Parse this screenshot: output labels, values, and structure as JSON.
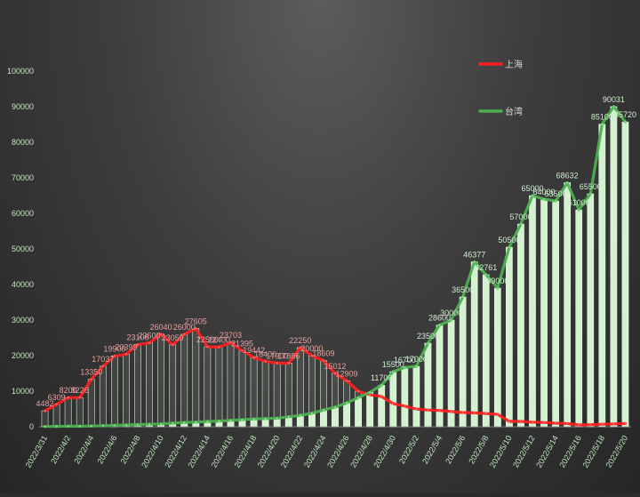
{
  "chart_data": {
    "type": "bar+line",
    "title": "",
    "xlabel": "",
    "ylabel": "",
    "ylim": [
      0,
      100000
    ],
    "yticks": [
      "0",
      "10000",
      "20000",
      "30000",
      "40000",
      "50000",
      "60000",
      "70000",
      "80000",
      "90000",
      "100000"
    ],
    "legend_position": "top-right",
    "grid": false,
    "categories": [
      "2022/3/31",
      "2022/4/1",
      "2022/4/2",
      "2022/4/3",
      "2022/4/4",
      "2022/4/5",
      "2022/4/6",
      "2022/4/7",
      "2022/4/8",
      "2022/4/9",
      "2022/4/10",
      "2022/4/11",
      "2022/4/12",
      "2022/4/13",
      "2022/4/14",
      "2022/4/15",
      "2022/4/16",
      "2022/4/17",
      "2022/4/18",
      "2022/4/19",
      "2022/4/20",
      "2022/4/21",
      "2022/4/22",
      "2022/4/23",
      "2022/4/24",
      "2022/4/25",
      "2022/4/26",
      "2022/4/27",
      "2022/4/28",
      "2022/4/29",
      "2022/4/30",
      "2022/5/1",
      "2022/5/2",
      "2022/5/3",
      "2022/5/4",
      "2022/5/5",
      "2022/5/6",
      "2022/5/7",
      "2022/5/8",
      "2022/5/9",
      "2022/5/10",
      "2022/5/11",
      "2022/5/12",
      "2022/5/13",
      "2022/5/14",
      "2022/5/15",
      "2022/5/16",
      "2022/5/17",
      "2022/5/18",
      "2022/5/19",
      "2022/5/20"
    ],
    "xtick_labels": [
      "2022/3/31",
      "2022/4/2",
      "2022/4/4",
      "2022/4/6",
      "2022/4/8",
      "2022/4/10",
      "2022/4/12",
      "2022/4/14",
      "2022/4/16",
      "2022/4/18",
      "2022/4/20",
      "2022/4/22",
      "2022/4/24",
      "2022/4/26",
      "2022/4/28",
      "2022/4/30",
      "2022/5/2",
      "2022/5/4",
      "2022/5/6",
      "2022/5/8",
      "2022/5/10",
      "2022/5/12",
      "2022/5/14",
      "2022/5/16",
      "2022/5/18",
      "2022/5/20"
    ],
    "series": [
      {
        "name": "上海",
        "color": "#ff2020",
        "values": [
          4482,
          6309,
          8200,
          8226,
          13350,
          17037,
          19900,
          20399,
          23106,
          23600,
          26040,
          23059,
          26000,
          27605,
          22500,
          22400,
          23703,
          21395,
          19442,
          18400,
          17900,
          17886,
          22250,
          20000,
          18609,
          15012,
          12909,
          10000,
          9000,
          8500,
          6500,
          5800,
          5000,
          4700,
          4600,
          4300,
          4000,
          3900,
          3700,
          3500,
          1500,
          1500,
          1300,
          1200,
          1000,
          900,
          500,
          600,
          700,
          800,
          900
        ],
        "labels": [
          "4482",
          "6309",
          "8200",
          "8226",
          "13350",
          "17037",
          "19900",
          "20399",
          "23106",
          "23600",
          "26040",
          "23059",
          "26000",
          "27605",
          "22500",
          "22400",
          "23703",
          "21395",
          "19442",
          "18400",
          "17900",
          "17886",
          "22250",
          "20000",
          "18609",
          "15012",
          "12909",
          "",
          "",
          "",
          "",
          "",
          "",
          "",
          "",
          "",
          "",
          "",
          "",
          "",
          "",
          "",
          "",
          "",
          "",
          "",
          "",
          "",
          "",
          "",
          ""
        ]
      },
      {
        "name": "台湾",
        "color": "#4caf50",
        "values": [
          87,
          100,
          150,
          160,
          200,
          300,
          400,
          500,
          600,
          700,
          800,
          1000,
          1200,
          1300,
          1500,
          1600,
          1800,
          2000,
          2200,
          2300,
          2400,
          2800,
          3200,
          3800,
          4700,
          5500,
          6700,
          8200,
          9700,
          11700,
          15500,
          16700,
          17000,
          23500,
          28600,
          30000,
          36500,
          46377,
          42761,
          39000,
          50500,
          57000,
          65000,
          64000,
          63500,
          68632,
          61000,
          65500,
          85100,
          90031,
          85720
        ],
        "labels": [
          "",
          "",
          "",
          "",
          "",
          "",
          "",
          "",
          "",
          "",
          "",
          "",
          "",
          "",
          "",
          "",
          "",
          "",
          "",
          "",
          "",
          "",
          "",
          "",
          "",
          "",
          "",
          "",
          "",
          "11700",
          "15500",
          "16700",
          "17000",
          "23500",
          "28600",
          "30000",
          "36500",
          "46377",
          "42761",
          "39000",
          "50500",
          "57000",
          "65000",
          "64000",
          "63500",
          "68632",
          "61000",
          "65500",
          "85100",
          "90031",
          "85720"
        ]
      }
    ]
  }
}
